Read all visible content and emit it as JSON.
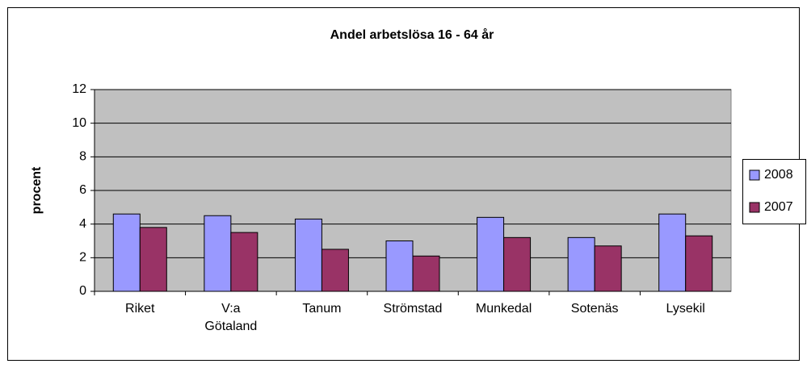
{
  "chart_data": {
    "type": "bar",
    "title": "Andel arbetslösa 16 - 64 år",
    "ylabel": "procent",
    "categories": [
      "Riket",
      "V:a Götaland",
      "Tanum",
      "Strömstad",
      "Munkedal",
      "Sotenäs",
      "Lysekil"
    ],
    "series": [
      {
        "name": "2008",
        "color": "#9999ff",
        "values": [
          4.6,
          4.5,
          4.3,
          3.0,
          4.4,
          3.2,
          4.6
        ]
      },
      {
        "name": "2007",
        "color": "#993366",
        "values": [
          3.8,
          3.5,
          2.5,
          2.1,
          3.2,
          2.7,
          3.3
        ]
      }
    ],
    "ylim": [
      0,
      12
    ],
    "yticks": [
      0,
      2,
      4,
      6,
      8,
      10,
      12
    ],
    "grid": true,
    "legend": "right"
  }
}
